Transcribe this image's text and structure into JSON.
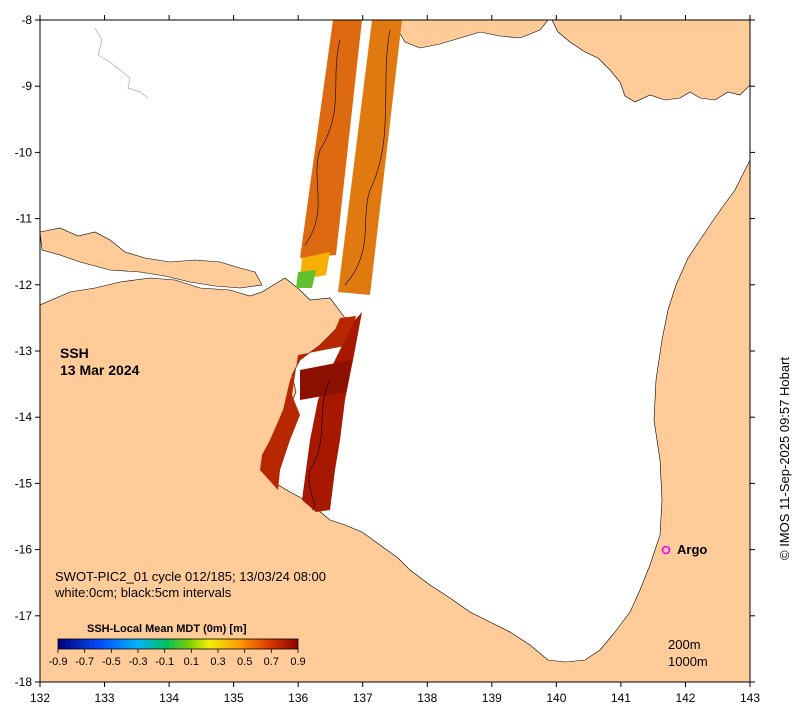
{
  "map": {
    "lon_ticks": [
      "132",
      "133",
      "134",
      "135",
      "136",
      "137",
      "138",
      "139",
      "140",
      "141",
      "142",
      "143"
    ],
    "lat_ticks": [
      "-8",
      "-9",
      "-10",
      "-11",
      "-12",
      "-13",
      "-14",
      "-15",
      "-16",
      "-17",
      "-18"
    ],
    "variable_label": "SSH",
    "date_label": "13 Mar 2024",
    "product_info": "SWOT-PIC2_01 cycle 012/185; 13/03/24 08:00",
    "contour_info": "white:0cm; black:5cm intervals",
    "colorbar": {
      "title": "SSH-Local Mean MDT (0m) [m]",
      "ticks": [
        "-0.9",
        "-0.7",
        "-0.5",
        "-0.3",
        "-0.1",
        "0.1",
        "0.3",
        "0.5",
        "0.7",
        "0.9"
      ],
      "range": [
        -0.9,
        0.9
      ]
    },
    "argo_label": "Argo",
    "isobath_labels": [
      "200m",
      "1000m"
    ],
    "credit": "© IMOS 11-Sep-2025 09:57 Hobart",
    "colors": {
      "land": "#ffcc99",
      "ocean": "#ffffff",
      "argo_marker": "#ff00ff"
    }
  }
}
